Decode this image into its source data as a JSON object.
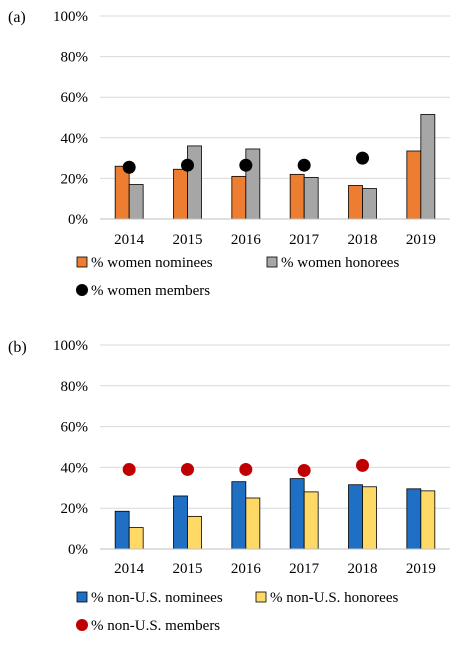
{
  "chart_data": [
    {
      "type": "bar",
      "panel_label": "(a)",
      "title": "",
      "xlabel": "",
      "ylabel": "",
      "categories": [
        "2014",
        "2015",
        "2016",
        "2017",
        "2018",
        "2019"
      ],
      "ylim": [
        0,
        100
      ],
      "yticks": [
        "0%",
        "20%",
        "40%",
        "60%",
        "80%",
        "100%"
      ],
      "grid": true,
      "series": [
        {
          "name": "% women nominees",
          "kind": "bar",
          "color": "#ED7D31",
          "values": [
            26,
            24.5,
            21,
            22,
            16.5,
            33.5
          ]
        },
        {
          "name": "% women honorees",
          "kind": "bar",
          "color": "#A6A6A6",
          "values": [
            17,
            36,
            34.5,
            20.5,
            15,
            51.5
          ]
        },
        {
          "name": "% women members",
          "kind": "dot",
          "color": "#000000",
          "values": [
            25.5,
            26.5,
            26.5,
            26.5,
            30,
            null
          ]
        }
      ],
      "legend": {
        "placement": "bottom"
      }
    },
    {
      "type": "bar",
      "panel_label": "(b)",
      "title": "",
      "xlabel": "",
      "ylabel": "",
      "categories": [
        "2014",
        "2015",
        "2016",
        "2017",
        "2018",
        "2019"
      ],
      "ylim": [
        0,
        100
      ],
      "yticks": [
        "0%",
        "20%",
        "40%",
        "60%",
        "80%",
        "100%"
      ],
      "grid": true,
      "series": [
        {
          "name": "% non-U.S. nominees",
          "kind": "bar",
          "color": "#1F6FC5",
          "values": [
            18.5,
            26,
            33,
            34.5,
            31.5,
            29.5
          ]
        },
        {
          "name": "% non-U.S. honorees",
          "kind": "bar",
          "color": "#FFD966",
          "values": [
            10.5,
            16,
            25,
            28,
            30.5,
            28.5
          ]
        },
        {
          "name": "% non-U.S. members",
          "kind": "dot",
          "color": "#C00000",
          "values": [
            39,
            39,
            39,
            38.5,
            41,
            null
          ]
        }
      ],
      "legend": {
        "placement": "bottom"
      }
    }
  ]
}
